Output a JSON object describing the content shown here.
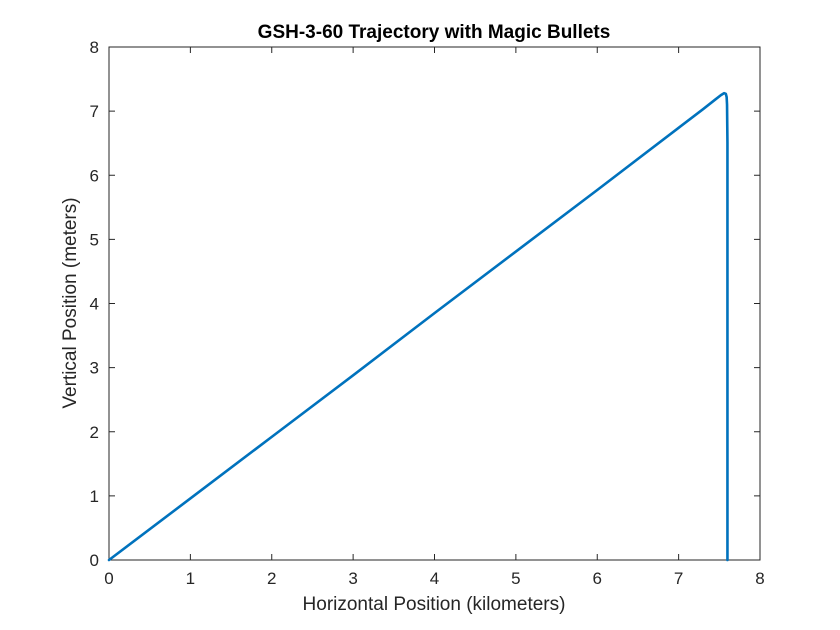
{
  "chart_data": {
    "type": "line",
    "title": "GSH-3-60 Trajectory with Magic Bullets",
    "xlabel": "Horizontal Position (kilometers)",
    "ylabel": "Vertical Position (meters)",
    "xlim": [
      0,
      8
    ],
    "ylim": [
      0,
      8
    ],
    "xticks": [
      "0",
      "1",
      "2",
      "3",
      "4",
      "5",
      "6",
      "7",
      "8"
    ],
    "yticks": [
      "0",
      "1",
      "2",
      "3",
      "4",
      "5",
      "6",
      "7",
      "8"
    ],
    "grid": false,
    "line_color": "#0072BD",
    "series": [
      {
        "x": [
          0,
          1,
          2,
          3,
          4,
          5,
          6,
          7,
          7.3,
          7.45,
          7.52,
          7.56,
          7.58,
          7.59,
          7.595,
          7.6,
          7.6,
          7.6
        ],
        "y": [
          0,
          0.96,
          1.92,
          2.88,
          3.85,
          4.81,
          5.77,
          6.74,
          7.03,
          7.18,
          7.25,
          7.28,
          7.27,
          7.22,
          7.1,
          6.5,
          3.0,
          0
        ]
      }
    ]
  }
}
